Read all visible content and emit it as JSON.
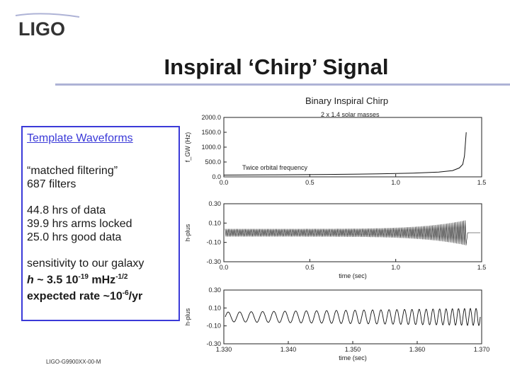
{
  "logo": {
    "text": "LIGO"
  },
  "slide": {
    "title": "Inspiral ‘Chirp’ Signal",
    "footer": "LIGO-G9900XX-00-M"
  },
  "panel": {
    "template_heading": "Template Waveforms",
    "matched_line1": "“matched filtering”",
    "matched_line2": "687 filters",
    "data_line1": "44.8 hrs of data",
    "data_line2": "39.9 hrs arms locked",
    "data_line3": "25.0 hrs good data",
    "sens_line1": "sensitivity  to our galaxy",
    "sens_h": "h",
    "sens_val": " ~ 3.5 10",
    "sens_exp1": "-19",
    "sens_unit": " mHz",
    "sens_exp2": "-1/2",
    "rate_text": "expected rate ~10",
    "rate_exp": "-6",
    "rate_unit": "/yr"
  },
  "chart_data": [
    {
      "type": "line",
      "title": "Binary Inspiral Chirp",
      "subtitle": "2 x 1.4 solar masses",
      "ylabel": "f_GW (Hz)",
      "annotation": "Twice orbital frequency",
      "x_ticks": [
        "0.0",
        "0.5",
        "1.0",
        "1.5"
      ],
      "y_ticks": [
        "0.0",
        "500.0",
        "1000.0",
        "1500.0",
        "2000.0"
      ],
      "xlim": [
        0,
        1.5
      ],
      "ylim": [
        0,
        2000
      ],
      "x": [
        0.0,
        0.3,
        0.6,
        0.9,
        1.1,
        1.25,
        1.33,
        1.37,
        1.39,
        1.4,
        1.41
      ],
      "y": [
        60,
        70,
        82,
        100,
        125,
        160,
        210,
        300,
        420,
        700,
        1500
      ]
    },
    {
      "type": "line",
      "ylabel": "h-plus",
      "xlabel": "time (sec)",
      "x_ticks": [
        "0.0",
        "0.5",
        "1.0",
        "1.5"
      ],
      "y_ticks": [
        "0.30",
        "0.10",
        "-0.10",
        "-0.30"
      ],
      "xlim": [
        0,
        1.5
      ],
      "ylim": [
        -0.3,
        0.3
      ]
    },
    {
      "type": "line",
      "ylabel": "h-plus",
      "xlabel": "time (sec)",
      "x_ticks": [
        "1.330",
        "1.340",
        "1.350",
        "1.360",
        "1.370"
      ],
      "y_ticks": [
        "0.30",
        "0.10",
        "-0.10",
        "-0.30"
      ],
      "xlim": [
        1.33,
        1.37
      ],
      "ylim": [
        -0.3,
        0.3
      ]
    }
  ]
}
